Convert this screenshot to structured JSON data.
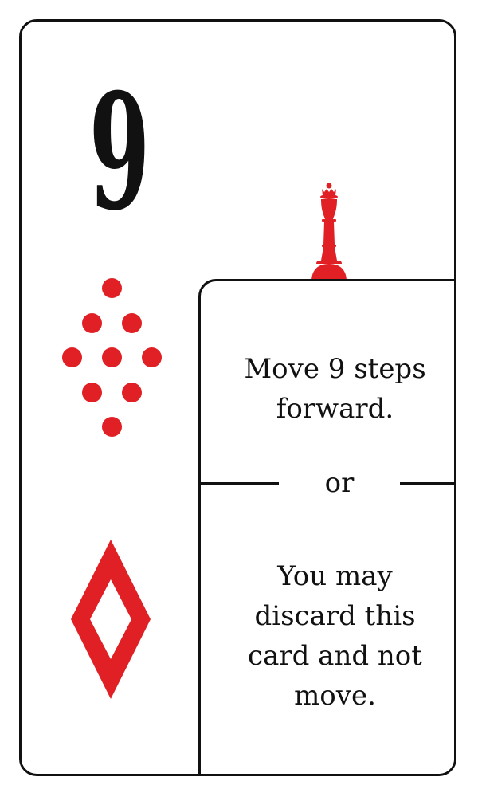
{
  "card": {
    "rank": "9",
    "suit_icon": "diamond-icon",
    "pawn_icon": "pawn-icon",
    "pip_count": 9,
    "accent_color": "#e02024",
    "ink_color": "#111111"
  },
  "instructions": {
    "primary_line1": "Move 9 steps",
    "primary_line2": "forward.",
    "divider": "or",
    "secondary_line1": "You may",
    "secondary_line2": "discard this",
    "secondary_line3": "card and not",
    "secondary_line4": "move."
  }
}
